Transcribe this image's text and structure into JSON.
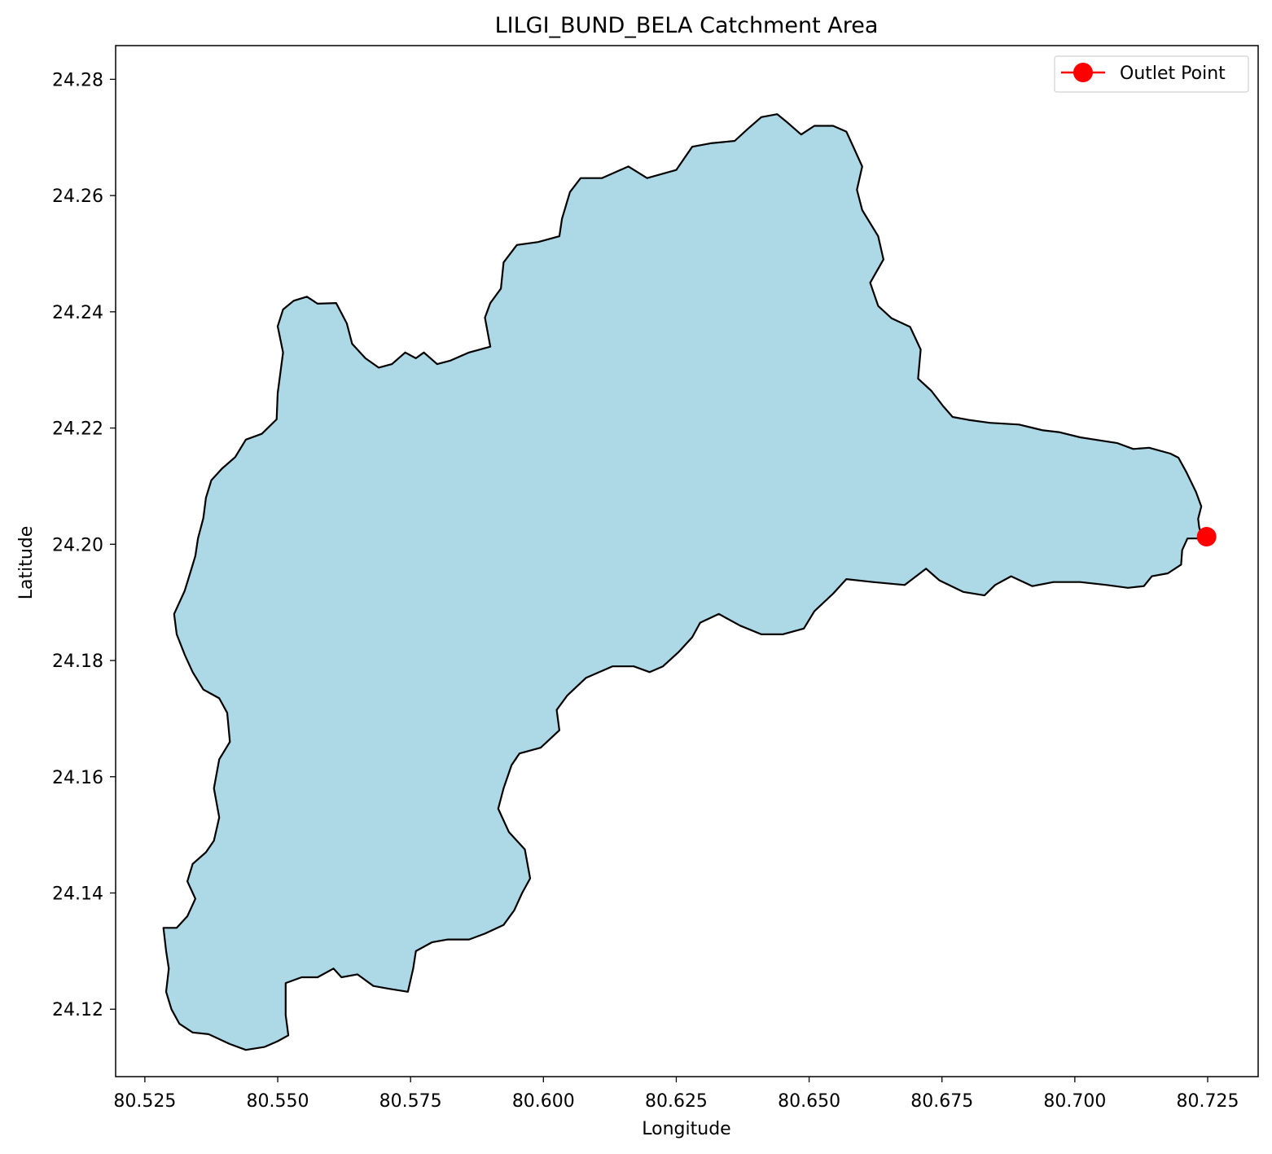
{
  "chart_data": {
    "type": "map",
    "title": "LILGI_BUND_BELA Catchment Area",
    "xlabel": "Longitude",
    "ylabel": "Latitude",
    "xlim": [
      80.5195,
      80.7345
    ],
    "ylim": [
      24.1084,
      24.2858
    ],
    "x_ticks": [
      "80.525",
      "80.550",
      "80.575",
      "80.600",
      "80.625",
      "80.650",
      "80.675",
      "80.700",
      "80.725"
    ],
    "y_ticks": [
      "24.12",
      "24.14",
      "24.16",
      "24.18",
      "24.20",
      "24.22",
      "24.24",
      "24.26",
      "24.28"
    ],
    "grid": false,
    "legend": {
      "placement": "top-right",
      "entries": [
        {
          "label": "Outlet Point",
          "color": "#ff0000",
          "marker": "circle"
        }
      ]
    },
    "catchment": {
      "fill": "#add8e6",
      "edge": "#000000",
      "boundary": [
        [
          80.724,
          24.201
        ],
        [
          80.7234,
          24.2029
        ],
        [
          80.7232,
          24.2044
        ],
        [
          80.7238,
          24.2065
        ],
        [
          80.7228,
          24.209
        ],
        [
          80.721,
          24.2124
        ],
        [
          80.7195,
          24.2149
        ],
        [
          80.718,
          24.2156
        ],
        [
          80.714,
          24.2166
        ],
        [
          80.711,
          24.2164
        ],
        [
          80.708,
          24.2174
        ],
        [
          80.7045,
          24.2179
        ],
        [
          80.701,
          24.2184
        ],
        [
          80.697,
          24.2193
        ],
        [
          80.694,
          24.2196
        ],
        [
          80.6895,
          24.2206
        ],
        [
          80.684,
          24.2209
        ],
        [
          80.68,
          24.2214
        ],
        [
          80.677,
          24.2219
        ],
        [
          80.6752,
          24.2238
        ],
        [
          80.673,
          24.2264
        ],
        [
          80.6705,
          24.2285
        ],
        [
          80.671,
          24.2335
        ],
        [
          80.669,
          24.2374
        ],
        [
          80.6655,
          24.2389
        ],
        [
          80.663,
          24.241
        ],
        [
          80.6615,
          24.245
        ],
        [
          80.664,
          24.249
        ],
        [
          80.663,
          24.253
        ],
        [
          80.66,
          24.2575
        ],
        [
          80.659,
          24.261
        ],
        [
          80.66,
          24.265
        ],
        [
          80.6585,
          24.268
        ],
        [
          80.657,
          24.271
        ],
        [
          80.6545,
          24.272
        ],
        [
          80.651,
          24.272
        ],
        [
          80.6485,
          24.2705
        ],
        [
          80.646,
          24.2725
        ],
        [
          80.644,
          24.274
        ],
        [
          80.641,
          24.2735
        ],
        [
          80.6385,
          24.2715
        ],
        [
          80.636,
          24.2694
        ],
        [
          80.6315,
          24.269
        ],
        [
          80.628,
          24.2684
        ],
        [
          80.625,
          24.2644
        ],
        [
          80.6195,
          24.263
        ],
        [
          80.616,
          24.265
        ],
        [
          80.611,
          24.263
        ],
        [
          80.607,
          24.263
        ],
        [
          80.605,
          24.2606
        ],
        [
          80.6035,
          24.256
        ],
        [
          80.603,
          24.253
        ],
        [
          80.599,
          24.252
        ],
        [
          80.595,
          24.2515
        ],
        [
          80.5925,
          24.2485
        ],
        [
          80.592,
          24.244
        ],
        [
          80.59,
          24.2415
        ],
        [
          80.589,
          24.239
        ],
        [
          80.59,
          24.234
        ],
        [
          80.586,
          24.233
        ],
        [
          80.5825,
          24.2316
        ],
        [
          80.58,
          24.231
        ],
        [
          80.5775,
          24.233
        ],
        [
          80.576,
          24.232
        ],
        [
          80.574,
          24.233
        ],
        [
          80.5715,
          24.231
        ],
        [
          80.569,
          24.2304
        ],
        [
          80.5665,
          24.232
        ],
        [
          80.564,
          24.2345
        ],
        [
          80.563,
          24.238
        ],
        [
          80.561,
          24.2415
        ],
        [
          80.5575,
          24.2414
        ],
        [
          80.5555,
          24.2426
        ],
        [
          80.553,
          24.2419
        ],
        [
          80.551,
          24.2404
        ],
        [
          80.55,
          24.2375
        ],
        [
          80.551,
          24.233
        ],
        [
          80.5505,
          24.2295
        ],
        [
          80.55,
          24.226
        ],
        [
          80.5498,
          24.2215
        ],
        [
          80.547,
          24.219
        ],
        [
          80.544,
          24.218
        ],
        [
          80.542,
          24.215
        ],
        [
          80.5395,
          24.213
        ],
        [
          80.5375,
          24.211
        ],
        [
          80.5365,
          24.208
        ],
        [
          80.536,
          24.2045
        ],
        [
          80.535,
          24.201
        ],
        [
          80.5345,
          24.198
        ],
        [
          80.5335,
          24.195
        ],
        [
          80.5325,
          24.192
        ],
        [
          80.5305,
          24.188
        ],
        [
          80.531,
          24.1845
        ],
        [
          80.5325,
          24.181
        ],
        [
          80.534,
          24.178
        ],
        [
          80.536,
          24.175
        ],
        [
          80.539,
          24.1735
        ],
        [
          80.5405,
          24.171
        ],
        [
          80.541,
          24.166
        ],
        [
          80.539,
          24.163
        ],
        [
          80.538,
          24.158
        ],
        [
          80.539,
          24.153
        ],
        [
          80.538,
          24.149
        ],
        [
          80.5365,
          24.147
        ],
        [
          80.534,
          24.145
        ],
        [
          80.533,
          24.142
        ],
        [
          80.5345,
          24.139
        ],
        [
          80.533,
          24.136
        ],
        [
          80.531,
          24.134
        ],
        [
          80.5285,
          24.134
        ],
        [
          80.529,
          24.13
        ],
        [
          80.5295,
          24.127
        ],
        [
          80.529,
          24.123
        ],
        [
          80.53,
          24.12
        ],
        [
          80.5315,
          24.1175
        ],
        [
          80.534,
          24.116
        ],
        [
          80.537,
          24.1157
        ],
        [
          80.541,
          24.114
        ],
        [
          80.544,
          24.113
        ],
        [
          80.5475,
          24.1135
        ],
        [
          80.55,
          24.1145
        ],
        [
          80.552,
          24.1155
        ],
        [
          80.5515,
          24.119
        ],
        [
          80.5515,
          24.1245
        ],
        [
          80.5545,
          24.1255
        ],
        [
          80.5575,
          24.1255
        ],
        [
          80.5605,
          24.127
        ],
        [
          80.562,
          24.1255
        ],
        [
          80.565,
          24.126
        ],
        [
          80.568,
          24.124
        ],
        [
          80.571,
          24.1235
        ],
        [
          80.5745,
          24.123
        ],
        [
          80.5755,
          24.127
        ],
        [
          80.576,
          24.13
        ],
        [
          80.579,
          24.1315
        ],
        [
          80.582,
          24.132
        ],
        [
          80.586,
          24.132
        ],
        [
          80.589,
          24.133
        ],
        [
          80.5925,
          24.1345
        ],
        [
          80.5945,
          24.137
        ],
        [
          80.596,
          24.14
        ],
        [
          80.5975,
          24.1425
        ],
        [
          80.5965,
          24.1475
        ],
        [
          80.5935,
          24.1505
        ],
        [
          80.5915,
          24.1545
        ],
        [
          80.5925,
          24.158
        ],
        [
          80.594,
          24.162
        ],
        [
          80.5955,
          24.164
        ],
        [
          80.5995,
          24.165
        ],
        [
          80.603,
          24.168
        ],
        [
          80.6025,
          24.1715
        ],
        [
          80.6045,
          24.174
        ],
        [
          80.608,
          24.177
        ],
        [
          80.613,
          24.179
        ],
        [
          80.617,
          24.179
        ],
        [
          80.62,
          24.178
        ],
        [
          80.6225,
          24.179
        ],
        [
          80.6255,
          24.1815
        ],
        [
          80.628,
          24.184
        ],
        [
          80.6295,
          24.1865
        ],
        [
          80.633,
          24.188
        ],
        [
          80.637,
          24.186
        ],
        [
          80.641,
          24.1845
        ],
        [
          80.645,
          24.1845
        ],
        [
          80.649,
          24.1855
        ],
        [
          80.651,
          24.1885
        ],
        [
          80.6545,
          24.1915
        ],
        [
          80.657,
          24.194
        ],
        [
          80.662,
          24.1935
        ],
        [
          80.668,
          24.193
        ],
        [
          80.672,
          24.1958
        ],
        [
          80.6745,
          24.1938
        ],
        [
          80.679,
          24.1918
        ],
        [
          80.683,
          24.1912
        ],
        [
          80.685,
          24.193
        ],
        [
          80.688,
          24.1945
        ],
        [
          80.692,
          24.1928
        ],
        [
          80.696,
          24.1935
        ],
        [
          80.701,
          24.1935
        ],
        [
          80.706,
          24.193
        ],
        [
          80.71,
          24.1925
        ],
        [
          80.713,
          24.1928
        ],
        [
          80.7145,
          24.1945
        ],
        [
          80.7175,
          24.195
        ],
        [
          80.72,
          24.1965
        ],
        [
          80.7202,
          24.199
        ],
        [
          80.7212,
          24.201
        ],
        [
          80.724,
          24.201
        ]
      ]
    },
    "outlet_point": {
      "label": "Outlet Point",
      "x": 80.7248,
      "y": 24.2013,
      "color": "#ff0000"
    }
  }
}
